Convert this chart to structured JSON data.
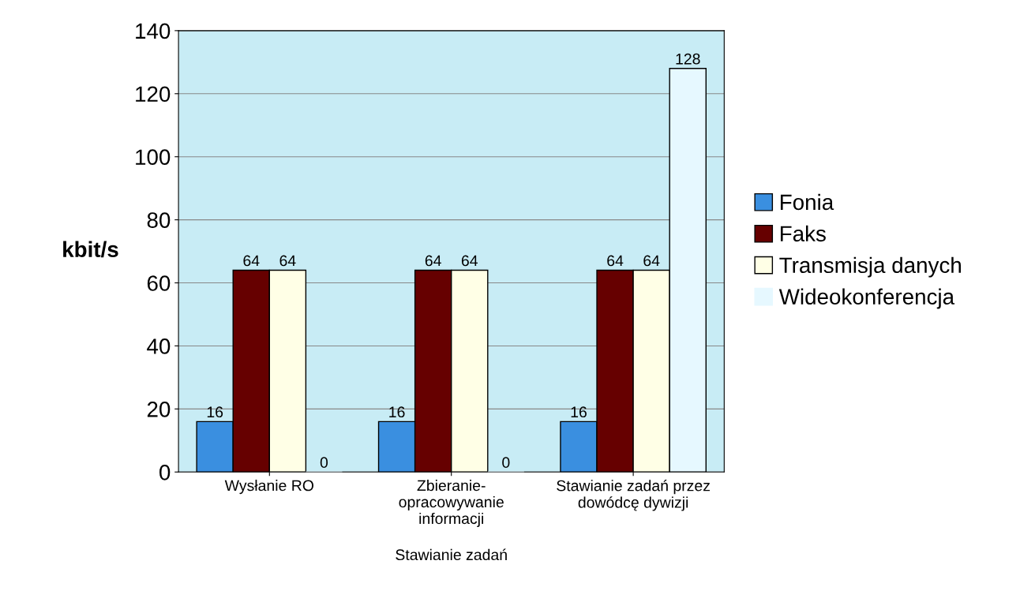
{
  "chart_data": {
    "type": "bar",
    "ylabel": "kbit/s",
    "xlabel": "Stawianie zadań",
    "categories": [
      "Wysłanie RO",
      "Zbieranie-\nopracowywanie\ninformacji",
      "Stawianie zadań przez\ndowódcę dywizji"
    ],
    "series": [
      {
        "name": "Fonia",
        "color": "#3a8fe0",
        "values": [
          16,
          16,
          16
        ]
      },
      {
        "name": "Faks",
        "color": "#660000",
        "values": [
          64,
          64,
          64
        ]
      },
      {
        "name": "Transmisja danych",
        "color": "#ffffe6",
        "values": [
          64,
          64,
          64
        ]
      },
      {
        "name": "Wideokonferencja",
        "color": "#e6f8ff",
        "values": [
          0,
          0,
          128
        ]
      }
    ],
    "ylim": [
      0,
      140
    ],
    "yticks": [
      0,
      20,
      40,
      60,
      80,
      100,
      120,
      140
    ],
    "grid": "y",
    "legend": "right",
    "data_labels": true
  }
}
